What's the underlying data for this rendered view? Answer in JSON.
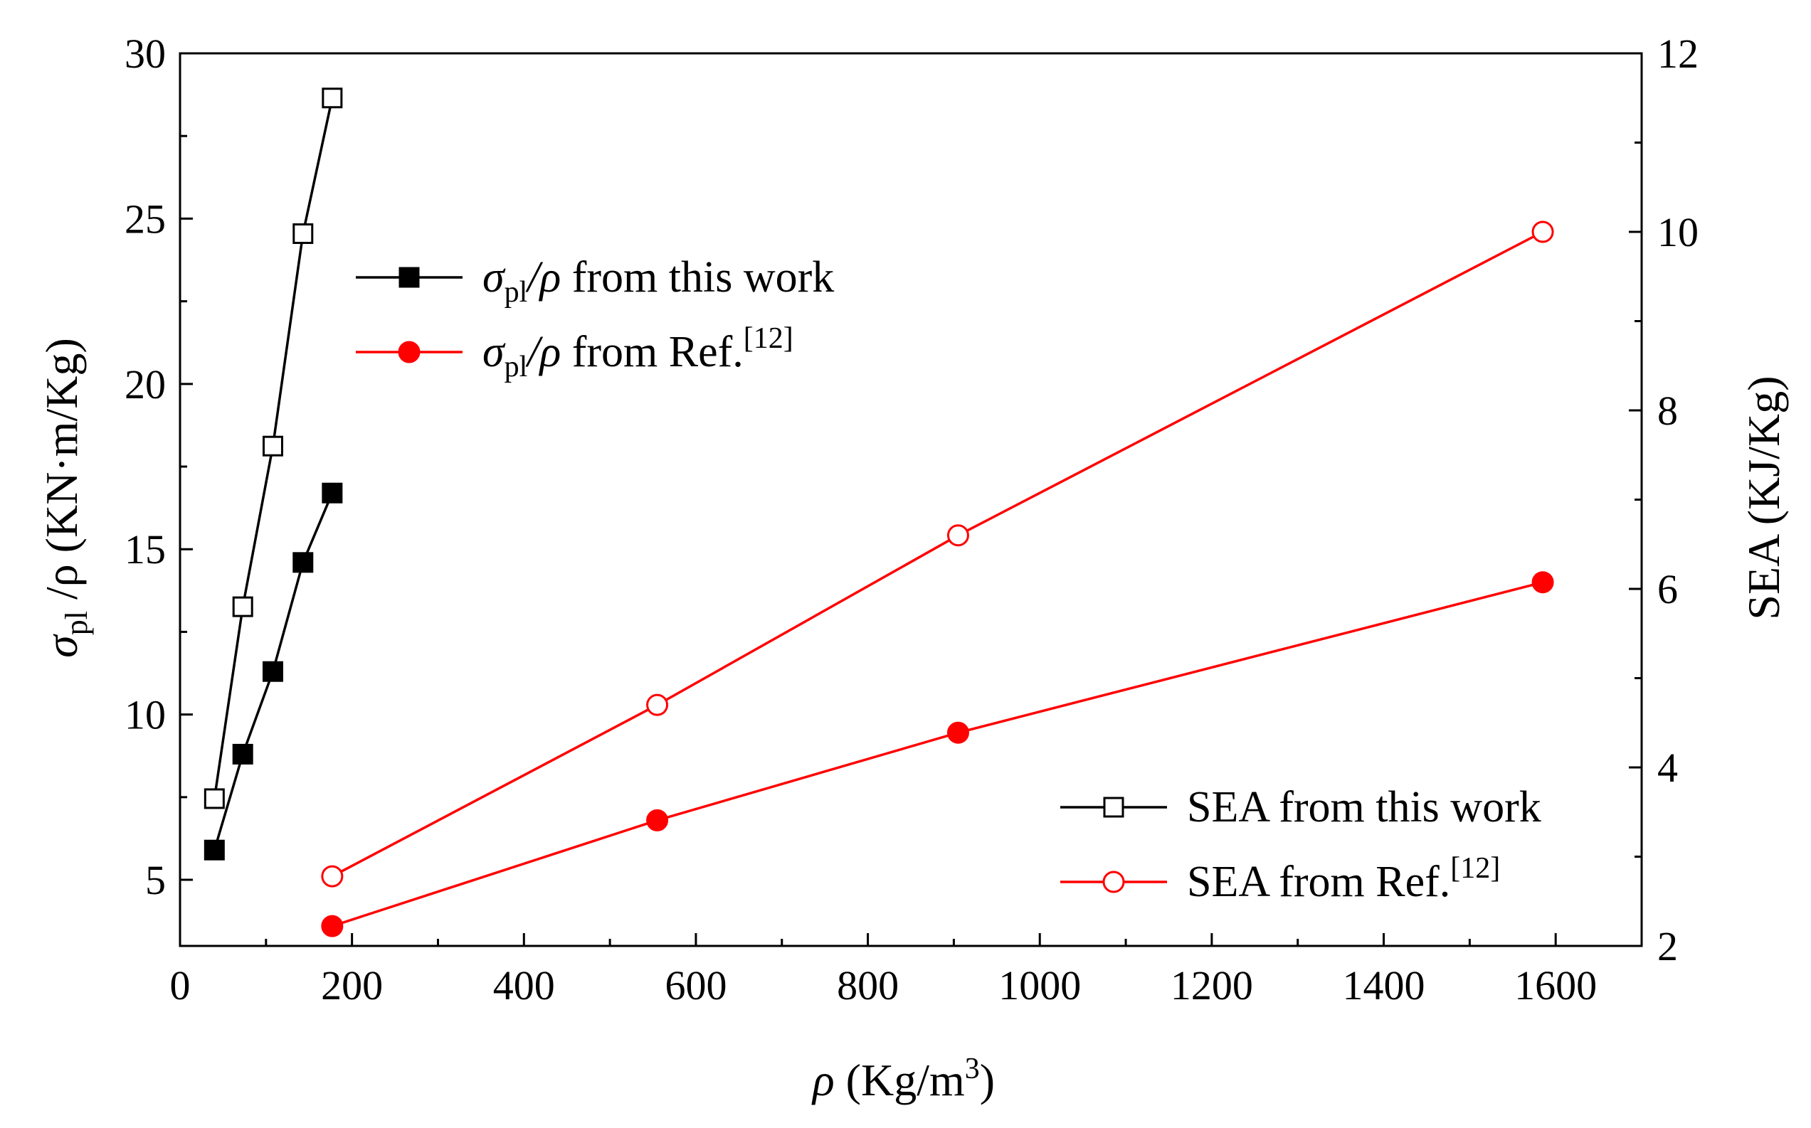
{
  "chart_data": {
    "type": "line",
    "title": "",
    "xlabel": "ρ (Kg/m3)",
    "xlabel_parts": {
      "symbol": "ρ",
      "unit_prefix": "(Kg/m",
      "unit_exp": "3",
      "unit_suffix": ")"
    },
    "ylabel_left": "σpl /ρ (KN·m/Kg)",
    "ylabel_left_parts": {
      "symbol": "σ",
      "sub": "pl",
      "rest": " /ρ (KN·m/Kg)"
    },
    "ylabel_right": "SEA (KJ/Kg)",
    "xlim": [
      0,
      1700
    ],
    "ylim_left": [
      3,
      30
    ],
    "ylim_right": [
      2,
      12
    ],
    "xticks": [
      0,
      200,
      400,
      600,
      800,
      1000,
      1200,
      1400,
      1600
    ],
    "yticks_left": [
      5,
      10,
      15,
      20,
      25,
      30
    ],
    "yticks_right": [
      2,
      4,
      6,
      8,
      10,
      12
    ],
    "series": [
      {
        "name": "σpl/ρ from this work",
        "legend_symbol": "σ",
        "legend_sub": "pl",
        "legend_mid": "/ρ",
        "legend_rest": " from this work",
        "legend_sup": "",
        "axis": "left",
        "color": "#000000",
        "marker": "square-filled",
        "x": [
          40,
          73,
          108,
          143,
          177
        ],
        "y": [
          5.9,
          8.8,
          11.3,
          14.6,
          16.7
        ]
      },
      {
        "name": "σpl/ρ from Ref.[12]",
        "legend_symbol": "σ",
        "legend_sub": "pl",
        "legend_mid": "/ρ",
        "legend_rest": " from Ref.",
        "legend_sup": "[12]",
        "axis": "left",
        "color": "#ff0000",
        "marker": "circle-filled",
        "x": [
          177,
          555,
          905,
          1585
        ],
        "y": [
          3.6,
          6.8,
          9.45,
          14.0
        ]
      },
      {
        "name": "SEA from this work",
        "legend_symbol": "",
        "legend_sub": "",
        "legend_mid": "",
        "legend_rest": "SEA from this work",
        "legend_sup": "",
        "axis": "right",
        "color": "#000000",
        "marker": "square-open",
        "x": [
          40,
          73,
          108,
          143,
          177
        ],
        "y": [
          3.65,
          5.8,
          7.6,
          9.98,
          11.5
        ]
      },
      {
        "name": "SEA from Ref.[12]",
        "legend_symbol": "",
        "legend_sub": "",
        "legend_mid": "",
        "legend_rest": "SEA from Ref.",
        "legend_sup": "[12]",
        "axis": "right",
        "color": "#ff0000",
        "marker": "circle-open",
        "x": [
          177,
          555,
          905,
          1585
        ],
        "y": [
          2.78,
          4.7,
          6.6,
          10.0
        ]
      }
    ],
    "legend_groups": [
      {
        "placement": "top-left",
        "series": [
          0,
          1
        ]
      },
      {
        "placement": "bottom-right",
        "series": [
          2,
          3
        ]
      }
    ]
  }
}
